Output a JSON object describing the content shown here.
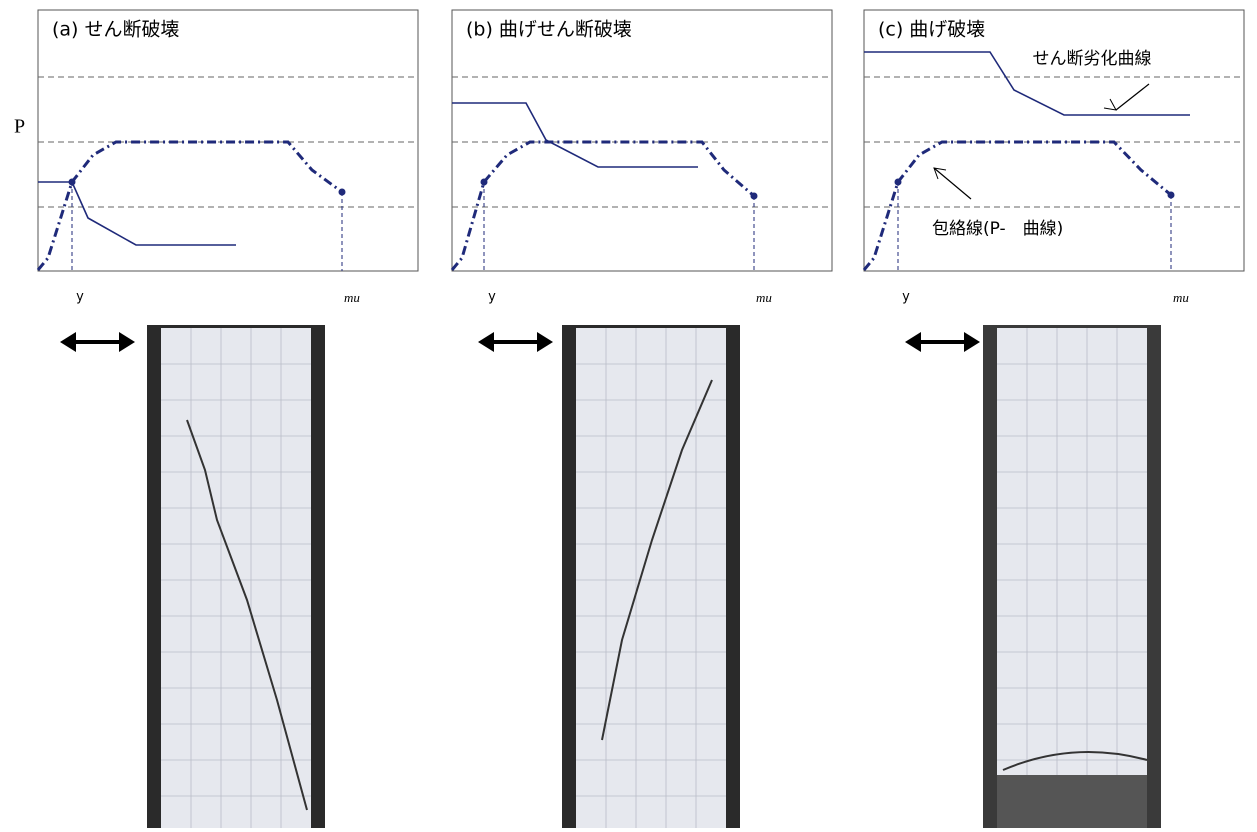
{
  "axis_label": "P",
  "panels": [
    {
      "title": "(a) せん断破壊",
      "x_labels": [
        "y",
        "mu"
      ]
    },
    {
      "title": "(b) 曲げせん断破壊",
      "x_labels": [
        "y",
        "mu"
      ]
    },
    {
      "title": "(c) 曲げ破壊",
      "x_labels": [
        "y",
        "mu"
      ],
      "annotations": [
        "せん断劣化曲線",
        "包絡線(P-　曲線)"
      ]
    }
  ]
}
